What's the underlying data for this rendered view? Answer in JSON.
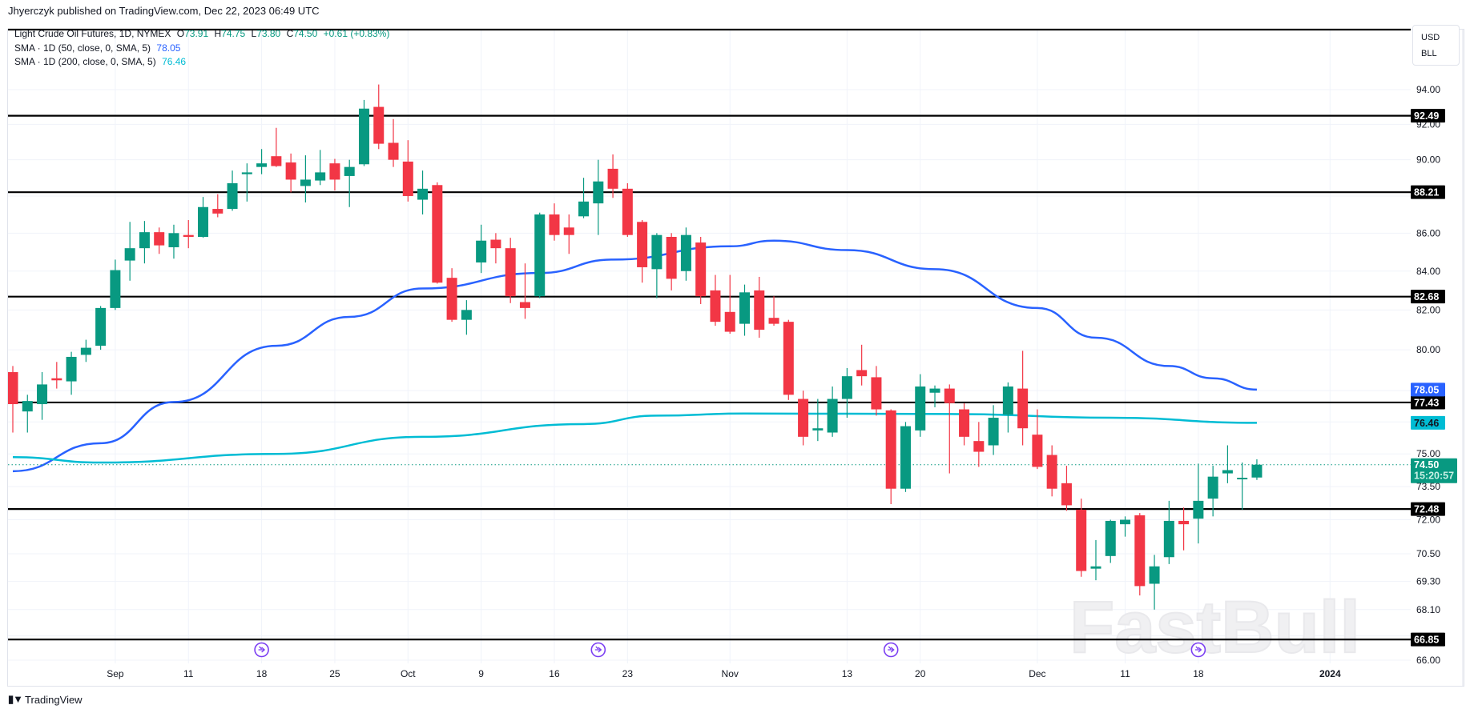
{
  "header": {
    "published": "Jhyerczyk published on TradingView.com, Dec 22, 2023 06:49 UTC"
  },
  "legend": {
    "symbol": "Light Crude Oil Futures, 1D, NYMEX",
    "o_label": "O",
    "o": "73.91",
    "h_label": "H",
    "h": "74.75",
    "l_label": "L",
    "l": "73.80",
    "c_label": "C",
    "c": "74.50",
    "change": "+0.61 (+0.83%)",
    "sma50_label": "SMA · 1D (50, close, 0, SMA, 5)",
    "sma50_value": "78.05",
    "sma200_label": "SMA · 1D (200, close, 0, SMA, 5)",
    "sma200_value": "76.46"
  },
  "unit_box": {
    "currency": "USD",
    "unit": "BLL"
  },
  "colors": {
    "up": "#089981",
    "down": "#f23645",
    "sma50": "#2962ff",
    "sma200": "#00bcd4",
    "level": "#000000",
    "event": "#7b3ff2"
  },
  "price_labels": {
    "last_price": "74.50",
    "countdown": "15:20:57",
    "sma50": "78.05",
    "sma200": "76.46"
  },
  "events": {
    "icon": "arrow-circle-icon",
    "dates": [
      "Sep 18",
      "Oct 19",
      "Nov 16",
      "Dec 18"
    ]
  },
  "watermark": {
    "text": "FastBull"
  },
  "footer": {
    "brand": "TradingView",
    "logo": "TV"
  },
  "chart_data": {
    "type": "candlestick",
    "title": "Light Crude Oil Futures, 1D, NYMEX",
    "y_scale": "log",
    "ylim": [
      66.0,
      94.3
    ],
    "grid": true,
    "y_ticks": [
      "94.00",
      "92.00",
      "90.00",
      "86.00",
      "84.00",
      "82.00",
      "80.00",
      "75.00",
      "73.50",
      "72.00",
      "70.50",
      "69.30",
      "68.10",
      "66.00"
    ],
    "y_grid_only": [
      88.0,
      78.0,
      76.5,
      67.0
    ],
    "x_ticks": [
      {
        "label": "Sep",
        "date": "Sep 1"
      },
      {
        "label": "11",
        "date": "Sep 11"
      },
      {
        "label": "18",
        "date": "Sep 18"
      },
      {
        "label": "25",
        "date": "Sep 25"
      },
      {
        "label": "Oct",
        "date": "Oct 2"
      },
      {
        "label": "9",
        "date": "Oct 9"
      },
      {
        "label": "16",
        "date": "Oct 16"
      },
      {
        "label": "23",
        "date": "Oct 23"
      },
      {
        "label": "Nov",
        "date": "Nov 1"
      },
      {
        "label": "13",
        "date": "Nov 13"
      },
      {
        "label": "20",
        "date": "Nov 20"
      },
      {
        "label": "Dec",
        "date": "Dec 1"
      },
      {
        "label": "11",
        "date": "Dec 11"
      },
      {
        "label": "18",
        "date": "Dec 18"
      },
      {
        "label": "2024",
        "date": "Jan 2"
      }
    ],
    "horizontal_levels": [
      "92.49",
      "88.21",
      "82.68",
      "77.43",
      "72.48",
      "66.85"
    ],
    "dates": [
      "Aug 23",
      "Aug 24",
      "Aug 25",
      "Aug 28",
      "Aug 29",
      "Aug 30",
      "Aug 31",
      "Sep 1",
      "Sep 5",
      "Sep 6",
      "Sep 7",
      "Sep 8",
      "Sep 11",
      "Sep 12",
      "Sep 13",
      "Sep 14",
      "Sep 15",
      "Sep 18",
      "Sep 19",
      "Sep 20",
      "Sep 21",
      "Sep 22",
      "Sep 25",
      "Sep 26",
      "Sep 27",
      "Sep 28",
      "Sep 29",
      "Oct 2",
      "Oct 3",
      "Oct 4",
      "Oct 5",
      "Oct 6",
      "Oct 9",
      "Oct 10",
      "Oct 11",
      "Oct 12",
      "Oct 13",
      "Oct 16",
      "Oct 17",
      "Oct 18",
      "Oct 19",
      "Oct 20",
      "Oct 23",
      "Oct 24",
      "Oct 25",
      "Oct 26",
      "Oct 27",
      "Oct 30",
      "Oct 31",
      "Nov 1",
      "Nov 2",
      "Nov 3",
      "Nov 6",
      "Nov 7",
      "Nov 8",
      "Nov 9",
      "Nov 10",
      "Nov 13",
      "Nov 14",
      "Nov 15",
      "Nov 16",
      "Nov 17",
      "Nov 20",
      "Nov 21",
      "Nov 22",
      "Nov 24",
      "Nov 27",
      "Nov 28",
      "Nov 29",
      "Nov 30",
      "Dec 1",
      "Dec 4",
      "Dec 5",
      "Dec 6",
      "Dec 7",
      "Dec 8",
      "Dec 11",
      "Dec 12",
      "Dec 13",
      "Dec 14",
      "Dec 15",
      "Dec 18",
      "Dec 19",
      "Dec 20",
      "Dec 21",
      "Dec 22"
    ],
    "ohlc": [
      [
        78.9,
        79.2,
        76.0,
        77.35
      ],
      [
        77.0,
        77.8,
        76.0,
        77.5
      ],
      [
        77.35,
        78.9,
        76.6,
        78.3
      ],
      [
        78.6,
        79.4,
        78.1,
        78.5
      ],
      [
        78.45,
        79.9,
        77.8,
        79.65
      ],
      [
        79.75,
        80.5,
        79.4,
        80.1
      ],
      [
        80.2,
        82.2,
        80.0,
        82.1
      ],
      [
        82.1,
        84.6,
        82.0,
        84.05
      ],
      [
        84.55,
        86.6,
        83.5,
        85.2
      ],
      [
        85.2,
        86.65,
        84.4,
        86.05
      ],
      [
        86.05,
        86.3,
        84.9,
        85.35
      ],
      [
        85.25,
        86.45,
        84.65,
        86.0
      ],
      [
        85.9,
        86.7,
        85.2,
        85.8
      ],
      [
        85.8,
        87.95,
        85.75,
        87.4
      ],
      [
        87.3,
        88.1,
        86.85,
        87.05
      ],
      [
        87.3,
        89.4,
        87.2,
        88.7
      ],
      [
        89.2,
        89.8,
        87.7,
        89.3
      ],
      [
        89.6,
        90.6,
        89.2,
        89.8
      ],
      [
        90.2,
        91.8,
        89.6,
        89.65
      ],
      [
        89.85,
        90.35,
        88.2,
        88.9
      ],
      [
        88.55,
        90.25,
        87.65,
        88.9
      ],
      [
        88.85,
        90.55,
        88.6,
        89.3
      ],
      [
        89.8,
        90.05,
        88.3,
        88.9
      ],
      [
        89.1,
        90.0,
        87.4,
        89.6
      ],
      [
        89.75,
        93.4,
        89.65,
        92.9
      ],
      [
        93.0,
        94.3,
        90.6,
        90.9
      ],
      [
        90.95,
        92.3,
        89.6,
        90.0
      ],
      [
        89.9,
        91.1,
        87.7,
        88.0
      ],
      [
        87.8,
        89.4,
        87.0,
        88.4
      ],
      [
        88.6,
        88.75,
        83.35,
        83.4
      ],
      [
        83.65,
        84.15,
        81.4,
        81.5
      ],
      [
        81.5,
        82.5,
        80.75,
        82.0
      ],
      [
        84.45,
        86.45,
        83.9,
        85.6
      ],
      [
        85.65,
        86.0,
        84.4,
        85.2
      ],
      [
        85.2,
        85.75,
        82.35,
        82.7
      ],
      [
        82.4,
        84.4,
        81.55,
        82.1
      ],
      [
        82.7,
        87.1,
        82.6,
        87.0
      ],
      [
        87.0,
        87.6,
        85.6,
        85.9
      ],
      [
        86.3,
        87.0,
        84.9,
        85.9
      ],
      [
        86.9,
        89.0,
        86.8,
        87.7
      ],
      [
        87.6,
        90.0,
        85.9,
        88.8
      ],
      [
        89.5,
        90.3,
        87.9,
        88.4
      ],
      [
        88.4,
        88.7,
        85.8,
        85.9
      ],
      [
        86.6,
        86.7,
        83.4,
        84.2
      ],
      [
        84.1,
        86.0,
        82.6,
        85.9
      ],
      [
        85.8,
        86.0,
        83.0,
        83.6
      ],
      [
        84.0,
        86.3,
        83.5,
        85.9
      ],
      [
        85.5,
        85.8,
        82.3,
        82.7
      ],
      [
        83.0,
        83.8,
        81.2,
        81.4
      ],
      [
        81.9,
        83.8,
        80.8,
        80.9
      ],
      [
        81.3,
        83.3,
        80.7,
        82.9
      ],
      [
        83.0,
        83.7,
        80.6,
        81.0
      ],
      [
        81.6,
        82.7,
        81.2,
        81.3
      ],
      [
        81.4,
        81.5,
        77.55,
        77.8
      ],
      [
        77.6,
        78.0,
        75.4,
        75.8
      ],
      [
        76.1,
        77.6,
        75.6,
        76.2
      ],
      [
        76.0,
        78.2,
        75.8,
        77.6
      ],
      [
        77.6,
        79.1,
        76.7,
        78.7
      ],
      [
        79.0,
        80.25,
        78.25,
        78.7
      ],
      [
        78.65,
        79.2,
        76.8,
        77.1
      ],
      [
        77.05,
        77.1,
        72.7,
        73.4
      ],
      [
        73.4,
        76.5,
        73.25,
        76.3
      ],
      [
        76.1,
        78.8,
        75.8,
        78.2
      ],
      [
        77.9,
        78.25,
        77.2,
        78.1
      ],
      [
        78.1,
        78.3,
        74.1,
        77.4
      ],
      [
        77.1,
        77.4,
        75.4,
        75.8
      ],
      [
        75.6,
        76.5,
        74.4,
        75.1
      ],
      [
        75.4,
        77.3,
        74.95,
        76.7
      ],
      [
        76.85,
        78.4,
        76.0,
        78.2
      ],
      [
        78.1,
        79.95,
        75.4,
        76.2
      ],
      [
        75.9,
        77.1,
        74.3,
        74.4
      ],
      [
        74.95,
        75.4,
        73.05,
        73.4
      ],
      [
        73.65,
        74.45,
        72.4,
        72.65
      ],
      [
        72.45,
        72.95,
        69.5,
        69.75
      ],
      [
        69.85,
        71.1,
        69.35,
        69.95
      ],
      [
        70.4,
        72.0,
        70.1,
        71.95
      ],
      [
        71.8,
        72.15,
        71.25,
        72.0
      ],
      [
        72.2,
        72.3,
        68.7,
        69.1
      ],
      [
        69.2,
        70.45,
        68.1,
        69.95
      ],
      [
        70.35,
        72.85,
        70.05,
        71.95
      ],
      [
        71.95,
        72.55,
        70.65,
        71.8
      ],
      [
        72.05,
        74.55,
        70.95,
        72.85
      ],
      [
        72.95,
        74.45,
        72.15,
        73.95
      ],
      [
        74.1,
        75.4,
        73.65,
        74.25
      ],
      [
        73.85,
        74.6,
        72.45,
        73.9
      ],
      [
        73.91,
        74.75,
        73.8,
        74.5
      ]
    ],
    "series": [
      {
        "name": "SMA · 1D (50, close, 0, SMA, 5)",
        "points": [
          [
            "Aug 23",
            74.2
          ],
          [
            "Aug 31",
            75.5
          ],
          [
            "Sep 8",
            77.45
          ],
          [
            "Sep 19",
            80.2
          ],
          [
            "Sep 26",
            81.65
          ],
          [
            "Oct 3",
            83.1
          ],
          [
            "Oct 13",
            83.9
          ],
          [
            "Oct 20",
            84.6
          ],
          [
            "Nov 1",
            85.3
          ],
          [
            "Nov 6",
            85.6
          ],
          [
            "Nov 13",
            85.1
          ],
          [
            "Nov 21",
            84.1
          ],
          [
            "Dec 1",
            82.1
          ],
          [
            "Dec 7",
            80.6
          ],
          [
            "Dec 14",
            79.2
          ],
          [
            "Dec 19",
            78.6
          ],
          [
            "Dec 22",
            78.05
          ]
        ]
      },
      {
        "name": "SMA · 1D (200, close, 0, SMA, 5)",
        "points": [
          [
            "Aug 23",
            74.85
          ],
          [
            "Aug 31",
            74.6
          ],
          [
            "Sep 19",
            75.0
          ],
          [
            "Oct 3",
            75.8
          ],
          [
            "Oct 18",
            76.4
          ],
          [
            "Oct 25",
            76.8
          ],
          [
            "Nov 2",
            76.9
          ],
          [
            "Nov 22",
            76.88
          ],
          [
            "Dec 8",
            76.7
          ],
          [
            "Dec 22",
            76.46
          ]
        ]
      }
    ]
  }
}
